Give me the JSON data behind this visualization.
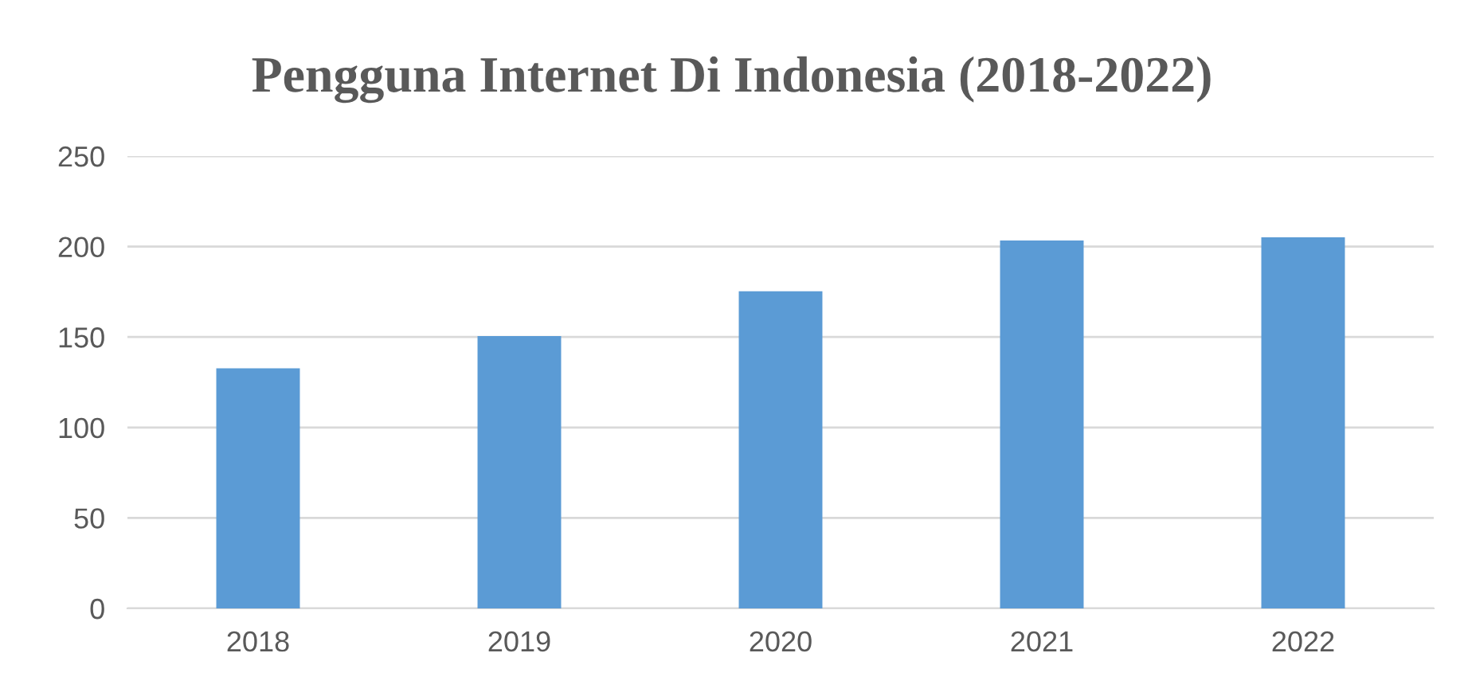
{
  "chart_data": {
    "type": "bar",
    "title": "Pengguna Internet Di Indonesia (2018-2022)",
    "categories": [
      "2018",
      "2019",
      "2020",
      "2021",
      "2022"
    ],
    "values": [
      132.7,
      150.5,
      175.3,
      203.3,
      205.1
    ],
    "color": "#5b9bd5",
    "ylim": [
      0,
      250
    ],
    "yticks": [
      0,
      50,
      100,
      150,
      200,
      250
    ],
    "grid": "y",
    "legend": false
  }
}
